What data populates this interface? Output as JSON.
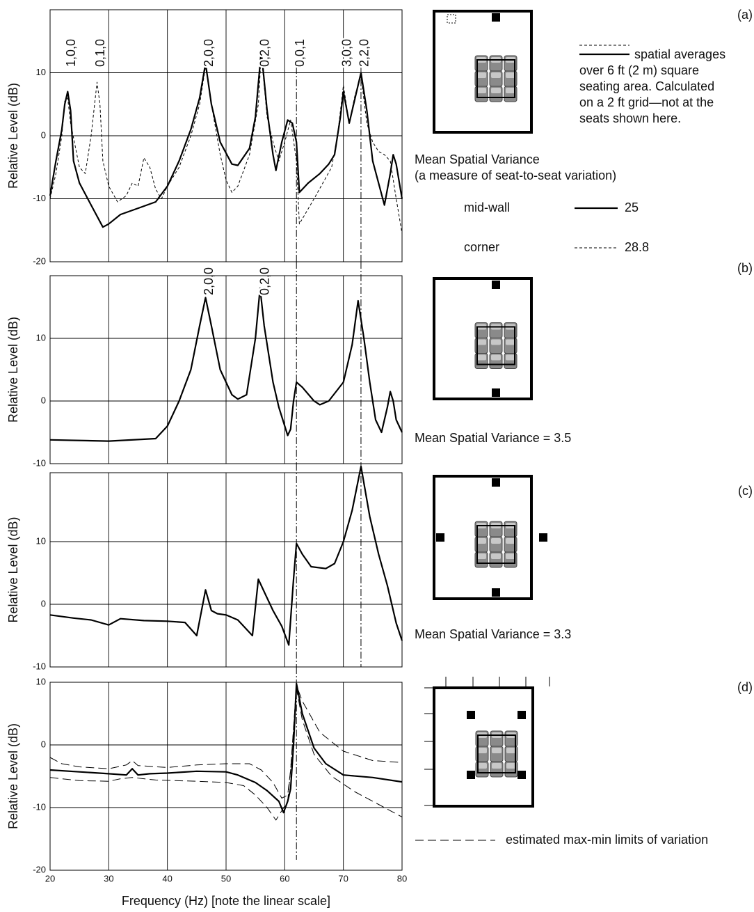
{
  "chart_data": [
    {
      "type": "line",
      "tag": "(a)",
      "ylabel": "Relative Level (dB)",
      "xlim": [
        20,
        80
      ],
      "ylim": [
        -20,
        20
      ],
      "yticks": [
        -20,
        -10,
        0,
        10
      ],
      "grid": true,
      "vlines": [
        62,
        73
      ],
      "annotations": [
        {
          "text": "1,0,0",
          "x": 23
        },
        {
          "text": "0,1,0",
          "x": 28
        },
        {
          "text": "2,0,0",
          "x": 46.5
        },
        {
          "text": "0,2,0",
          "x": 56
        },
        {
          "text": "0,0,1",
          "x": 62
        },
        {
          "text": "3,0,0",
          "x": 70
        },
        {
          "text": "2,2,0",
          "x": 73
        }
      ],
      "note_lines": [
        "spatial averages",
        "over 6 ft (2 m) square",
        "seating area. Calculated",
        "on a 2 ft grid—not at the",
        "seats shown here."
      ],
      "legend_title": "Mean Spatial Variance",
      "legend_subtitle": "(a measure of seat-to-seat variation)",
      "series": [
        {
          "name": "mid-wall",
          "variance": 25,
          "color": "#000000",
          "dash": "solid",
          "width": 2.2,
          "x": [
            20,
            21,
            22,
            22.5,
            23,
            23.5,
            24,
            25,
            27,
            29,
            30,
            32,
            35,
            38,
            40,
            42,
            44,
            45.5,
            46.5,
            47.5,
            49,
            51,
            52,
            54,
            55,
            56,
            57,
            58,
            58.5,
            59.5,
            60.5,
            61.3,
            62,
            62.5,
            64,
            66,
            67.5,
            68.5,
            69.5,
            70,
            71,
            72,
            73,
            74,
            75,
            77,
            78,
            78.5,
            79,
            80
          ],
          "values": [
            -9.5,
            -4,
            1,
            5,
            7,
            4,
            -4,
            -7.5,
            -11,
            -14.5,
            -14,
            -12.5,
            -11.5,
            -10.5,
            -8,
            -4,
            1,
            6,
            11.5,
            5,
            -1,
            -4.5,
            -4.7,
            -2,
            3,
            13.5,
            4,
            -3,
            -5.5,
            -1,
            2.5,
            2,
            -1,
            -9,
            -7.5,
            -6,
            -4.5,
            -3,
            3,
            7,
            2,
            6,
            10,
            4,
            -4,
            -11,
            -6,
            -3,
            -4.5,
            -10
          ]
        },
        {
          "name": "corner",
          "variance": 28.8,
          "color": "#000000",
          "dash": "dashed",
          "width": 1,
          "x": [
            20,
            21,
            22,
            22.5,
            23,
            23.5,
            25,
            26,
            27,
            28,
            28.5,
            29,
            30,
            31.5,
            33,
            34,
            35,
            36,
            37,
            38,
            39,
            40,
            42,
            44,
            45.5,
            46.5,
            47.5,
            49,
            50,
            51,
            52,
            54,
            55.5,
            56,
            57,
            58,
            59,
            60,
            61,
            62,
            62.5,
            65,
            68,
            69,
            70,
            71,
            72,
            73,
            74,
            75,
            76,
            77,
            78,
            79,
            80
          ],
          "values": [
            -10,
            -6,
            0,
            5.5,
            6,
            2,
            -5,
            -6,
            0,
            8.5,
            5,
            -4,
            -8,
            -10.5,
            -9.5,
            -7.5,
            -8,
            -3.5,
            -5,
            -8.5,
            -10,
            -8,
            -5,
            0,
            5,
            11,
            5,
            -3,
            -7,
            -9,
            -8,
            -3,
            5,
            13,
            3,
            -1,
            -4,
            -1,
            2.5,
            -4,
            -14,
            -10,
            -5,
            0,
            8,
            2,
            6.5,
            9.5,
            2,
            -1,
            -2.5,
            -3,
            -4,
            -10,
            -15.5
          ]
        }
      ]
    },
    {
      "type": "line",
      "tag": "(b)",
      "ylabel": "Relative Level (dB)",
      "xlim": [
        20,
        80
      ],
      "ylim": [
        -10,
        20
      ],
      "yticks": [
        -10,
        0,
        10
      ],
      "grid": true,
      "vlines": [
        62,
        73
      ],
      "annotations": [
        {
          "text": "2,0,0",
          "x": 46.5
        },
        {
          "text": "0,2,0",
          "x": 56
        }
      ],
      "note": "Mean Spatial Variance = 3.5",
      "series": [
        {
          "color": "#000000",
          "dash": "solid",
          "width": 2.2,
          "x": [
            20,
            30,
            38,
            40,
            42,
            44,
            45.5,
            46.5,
            47.5,
            49,
            51,
            52,
            53.5,
            55,
            55.8,
            56.5,
            58,
            59,
            60.5,
            61,
            61.5,
            62,
            63,
            65,
            66,
            67.5,
            70,
            71.5,
            72.5,
            73.5,
            74.5,
            75.5,
            76.5,
            77.5,
            78,
            78.5,
            79,
            80
          ],
          "values": [
            -6.2,
            -6.4,
            -6,
            -4,
            0,
            5,
            12,
            16.5,
            12,
            5,
            1,
            0.3,
            1,
            10,
            18,
            12,
            3,
            -1,
            -5.5,
            -4.5,
            0,
            3,
            2.2,
            0,
            -0.6,
            0,
            3,
            9,
            16,
            10,
            3,
            -3,
            -5,
            -1,
            1.5,
            0,
            -3,
            -5
          ]
        }
      ]
    },
    {
      "type": "line",
      "tag": "(c)",
      "ylabel": "Relative Level (dB)",
      "xlim": [
        20,
        80
      ],
      "ylim": [
        -10,
        21
      ],
      "yticks": [
        -10,
        0,
        10
      ],
      "grid": true,
      "vlines": [
        62,
        73
      ],
      "note": "Mean Spatial Variance = 3.3",
      "series": [
        {
          "color": "#000000",
          "dash": "solid",
          "width": 2.2,
          "x": [
            20,
            24,
            27,
            30,
            32,
            36,
            40,
            43,
            45,
            46.5,
            47.5,
            48.5,
            50,
            52,
            54.5,
            55.5,
            56.5,
            58,
            59.5,
            60.7,
            61.5,
            62,
            63,
            64.5,
            67,
            68.5,
            70,
            71.5,
            73,
            74.5,
            76,
            77.5,
            79,
            80
          ],
          "values": [
            -1.7,
            -2.2,
            -2.5,
            -3.3,
            -2.3,
            -2.6,
            -2.7,
            -2.9,
            -5,
            2.3,
            -1,
            -1.5,
            -1.7,
            -2.5,
            -5,
            4,
            2,
            -1,
            -3.5,
            -6.5,
            4,
            9.7,
            8,
            6,
            5.7,
            6.5,
            10,
            15,
            22,
            14,
            8,
            3,
            -3,
            -5.8
          ]
        }
      ]
    },
    {
      "type": "line",
      "tag": "(d)",
      "ylabel": "Relative Level (dB)",
      "xlabel": "Frequency (Hz) [note the linear scale]",
      "xlim": [
        20,
        80
      ],
      "xticks": [
        20,
        30,
        40,
        50,
        60,
        70,
        80
      ],
      "ylim": [
        -20,
        10
      ],
      "yticks": [
        -20,
        -10,
        0,
        10
      ],
      "grid": true,
      "vlines": [
        62
      ],
      "series": [
        {
          "color": "#000000",
          "dash": "solid",
          "width": 2.2,
          "x": [
            20,
            25,
            30,
            33,
            34,
            35,
            37,
            40,
            45,
            50,
            52,
            55,
            57,
            59,
            59.8,
            60.5,
            61,
            61.5,
            62,
            63,
            65,
            67,
            70,
            75,
            80
          ],
          "values": [
            -4,
            -4.3,
            -4.6,
            -4.8,
            -3.8,
            -4.8,
            -4.6,
            -4.5,
            -4.2,
            -4.3,
            -4.8,
            -6,
            -7.3,
            -9,
            -10.8,
            -9,
            -7,
            0,
            9.8,
            5,
            -0.5,
            -3,
            -4.8,
            -5.2,
            -5.9
          ]
        },
        {
          "name": "estimated max-min limits of variation",
          "color": "#000000",
          "dash": "longdash",
          "width": 1,
          "x": [
            20,
            22,
            25,
            30,
            33,
            34,
            35,
            40,
            45,
            50,
            54,
            56,
            58,
            59.5,
            60.5,
            61,
            62,
            63,
            66,
            70,
            75,
            80
          ],
          "values": [
            -2,
            -3,
            -3.5,
            -3.8,
            -3.2,
            -2.5,
            -3.3,
            -3.6,
            -3.2,
            -3,
            -3,
            -4,
            -6,
            -8.5,
            -8,
            -4,
            9.5,
            7,
            2,
            -1,
            -2.5,
            -2.8
          ]
        },
        {
          "color": "#000000",
          "dash": "longdash",
          "width": 1,
          "x": [
            20,
            25,
            30,
            32,
            34,
            38,
            45,
            50,
            53,
            55,
            57,
            58.5,
            59.5,
            60.5,
            61,
            62,
            63,
            65,
            68,
            72,
            76,
            80
          ],
          "values": [
            -5.2,
            -5.7,
            -5.8,
            -5.4,
            -5.2,
            -5.6,
            -5.8,
            -6,
            -6.5,
            -8,
            -10,
            -12,
            -10.5,
            -9,
            -4,
            9,
            4,
            -1.5,
            -5,
            -7.5,
            -9.5,
            -11.5
          ]
        }
      ]
    }
  ]
}
